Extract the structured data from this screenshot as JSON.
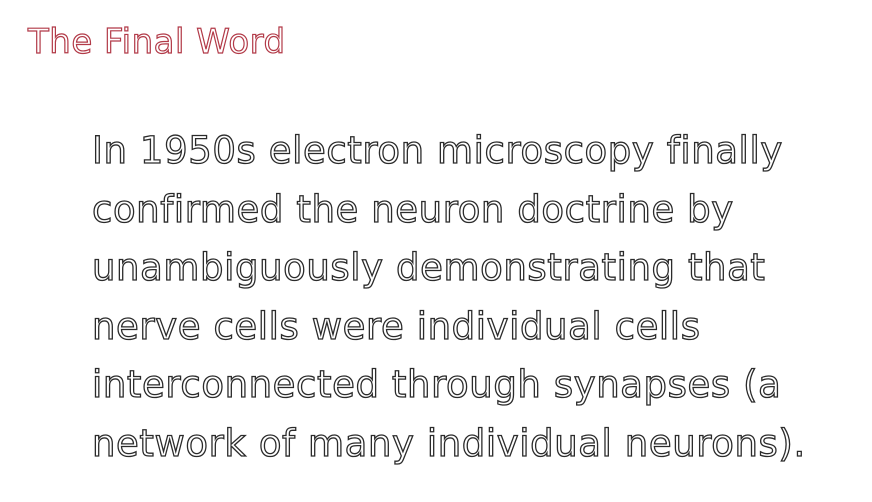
{
  "slide": {
    "title": "The Final Word",
    "body_lines": [
      "In 1950s electron microscopy finally",
      "confirmed the neuron doctrine by",
      "unambiguously demonstrating that",
      "nerve cells were individual cells",
      "interconnected through synapses (a",
      "network of many individual neurons)."
    ]
  },
  "colors": {
    "title": "#b23a48",
    "body_text": "#2b2b2b",
    "background": "#ffffff"
  }
}
